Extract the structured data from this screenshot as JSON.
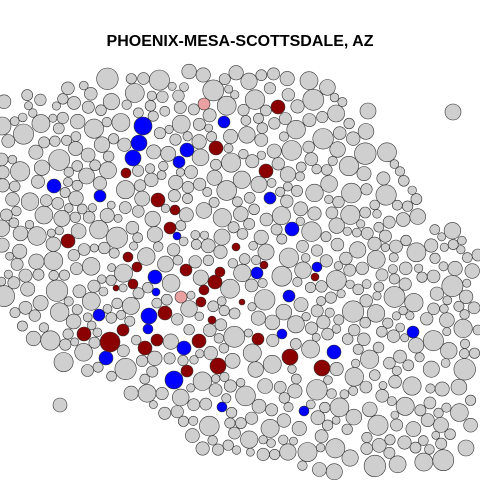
{
  "chart_data": {
    "type": "scatter",
    "title": "PHOENIX-MESA-SCOTTSDALE, AZ",
    "grid": false,
    "legend": "none",
    "colors": {
      "gray": "#cfcfcf",
      "blue": "#0000ff",
      "darkred": "#8b0000",
      "pink": "#e8a0a0",
      "stroke": "#333333"
    }
  }
}
